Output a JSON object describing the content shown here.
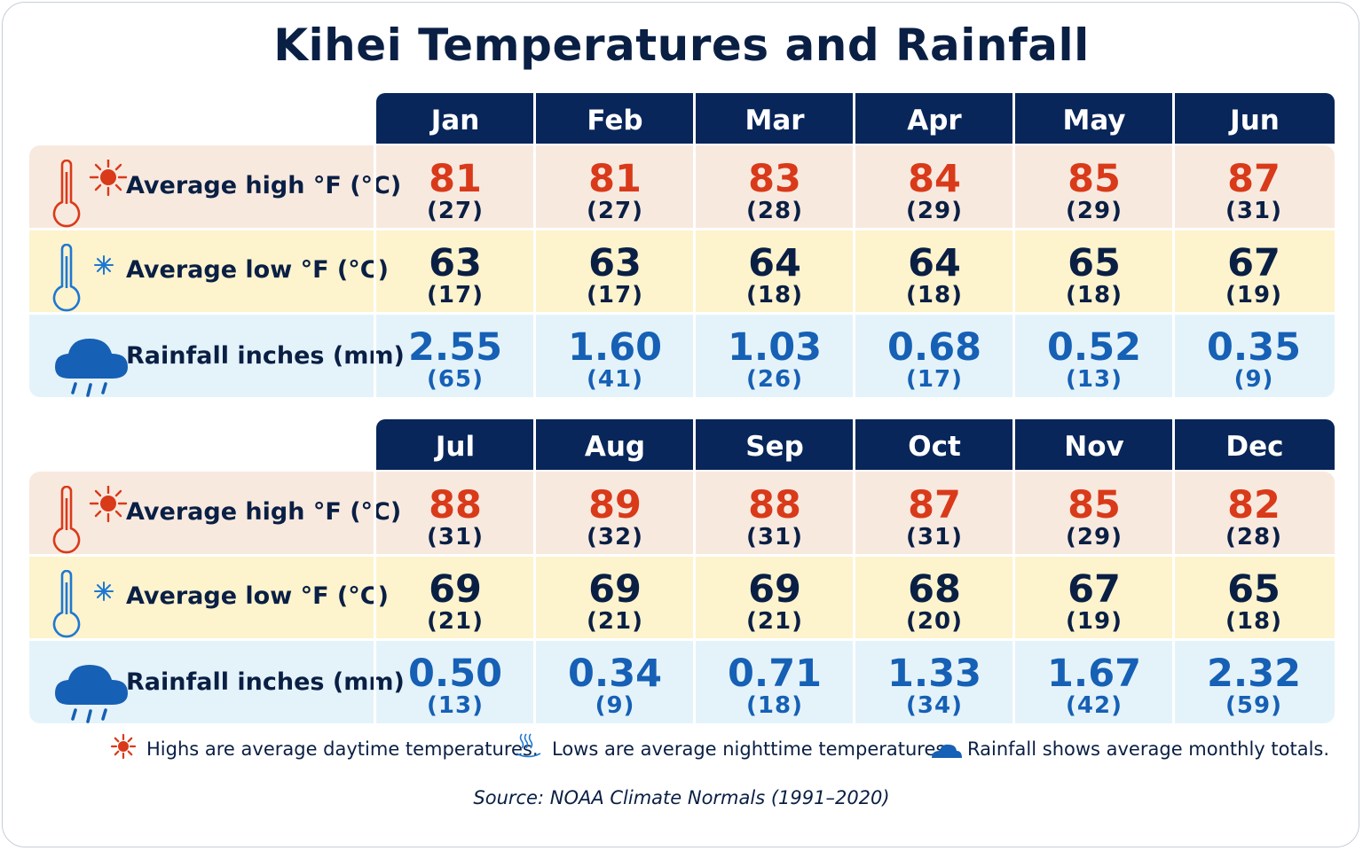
{
  "title": "Kihei Temperatures and Rainfall",
  "row_labels": {
    "high": "Average high °F (°C)",
    "low": "Average low °F (°C)",
    "rain": "Rainfall inches (mm)"
  },
  "colors": {
    "header": "#08265a",
    "high_text": "#d93a1a",
    "rain_text": "#1660b5",
    "high_band": "#f8e9df",
    "low_band": "#fdf3cd",
    "rain_band": "#e4f3fa",
    "low_icon": "#1e78d2"
  },
  "icons": {
    "high": "thermometer-sun-icon",
    "low": "thermometer-snowflake-icon",
    "rain": "rain-cloud-icon"
  },
  "legend": {
    "high": "Highs are average daytime temperatures.",
    "low": "Lows are average nighttime temperatures.",
    "rain": "Rainfall shows average monthly totals."
  },
  "source": "Source: NOAA Climate Normals (1991–2020)",
  "chart_data": {
    "type": "table",
    "title": "Kihei Temperatures and Rainfall",
    "months": [
      "Jan",
      "Feb",
      "Mar",
      "Apr",
      "May",
      "Jun",
      "Jul",
      "Aug",
      "Sep",
      "Oct",
      "Nov",
      "Dec"
    ],
    "high_f": [
      "81",
      "81",
      "83",
      "84",
      "85",
      "87",
      "88",
      "89",
      "88",
      "87",
      "85",
      "82"
    ],
    "high_c": [
      "(27)",
      "(27)",
      "(28)",
      "(29)",
      "(29)",
      "(31)",
      "(31)",
      "(32)",
      "(31)",
      "(31)",
      "(29)",
      "(28)"
    ],
    "low_f": [
      "63",
      "63",
      "64",
      "64",
      "65",
      "67",
      "69",
      "69",
      "69",
      "68",
      "67",
      "65"
    ],
    "low_c": [
      "(17)",
      "(17)",
      "(18)",
      "(18)",
      "(18)",
      "(19)",
      "(21)",
      "(21)",
      "(21)",
      "(20)",
      "(19)",
      "(18)"
    ],
    "rain_in": [
      "2.55",
      "1.60",
      "1.03",
      "0.68",
      "0.52",
      "0.35",
      "0.50",
      "0.34",
      "0.71",
      "1.33",
      "1.67",
      "2.32"
    ],
    "rain_mm": [
      "(65)",
      "(41)",
      "(26)",
      "(17)",
      "(13)",
      "(9)",
      "(13)",
      "(9)",
      "(18)",
      "(34)",
      "(42)",
      "(59)"
    ]
  }
}
